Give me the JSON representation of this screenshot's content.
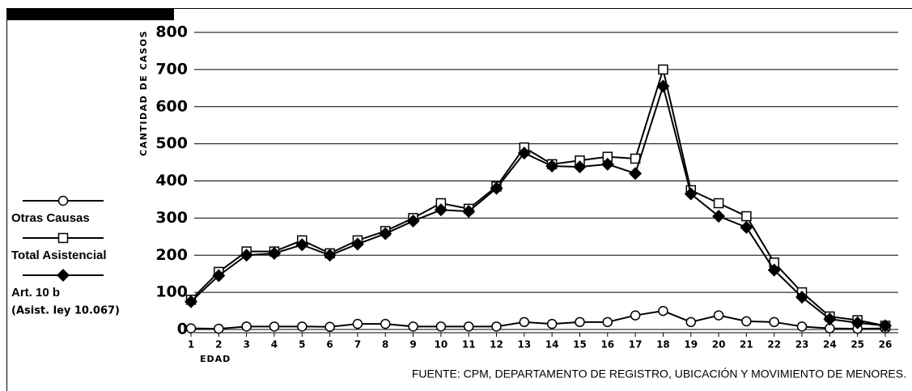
{
  "chart_data": {
    "type": "line",
    "y_label": "CANTIDAD DE CASOS",
    "x_label": "EDAD",
    "source": "FUENTE: CPM, DEPARTAMENTO DE REGISTRO, UBICACIÓN Y MOVIMIENTO DE MENORES.",
    "legend_note": "(Asist. ley 10.067)",
    "categories": [
      "1",
      "2",
      "3",
      "4",
      "5",
      "6",
      "7",
      "8",
      "9",
      "10",
      "11",
      "12",
      "13",
      "14",
      "15",
      "16",
      "17",
      "18",
      "19",
      "20",
      "21",
      "22",
      "23",
      "24",
      "25",
      "26"
    ],
    "series": [
      {
        "name": "Otras Causas",
        "color": "#000000",
        "marker": "circle",
        "values": [
          3,
          2,
          8,
          8,
          8,
          7,
          15,
          15,
          8,
          8,
          8,
          8,
          20,
          15,
          20,
          20,
          38,
          50,
          20,
          38,
          22,
          20,
          8,
          3,
          2,
          3
        ]
      },
      {
        "name": "Total Asistencial",
        "color": "#000000",
        "marker": "square",
        "values": [
          80,
          155,
          210,
          210,
          240,
          205,
          240,
          265,
          300,
          340,
          325,
          385,
          490,
          445,
          455,
          465,
          460,
          700,
          375,
          340,
          305,
          180,
          100,
          35,
          25,
          10
        ]
      },
      {
        "name": "Art. 10 b",
        "color": "#000000",
        "marker": "diamond",
        "values": [
          75,
          145,
          200,
          205,
          228,
          200,
          230,
          258,
          292,
          322,
          318,
          380,
          475,
          440,
          438,
          445,
          420,
          655,
          365,
          305,
          275,
          160,
          87,
          28,
          18,
          10
        ]
      }
    ],
    "ylim": [
      0,
      800
    ],
    "yticks": [
      0,
      100,
      200,
      300,
      400,
      500,
      600,
      700,
      800
    ],
    "grid": true
  }
}
